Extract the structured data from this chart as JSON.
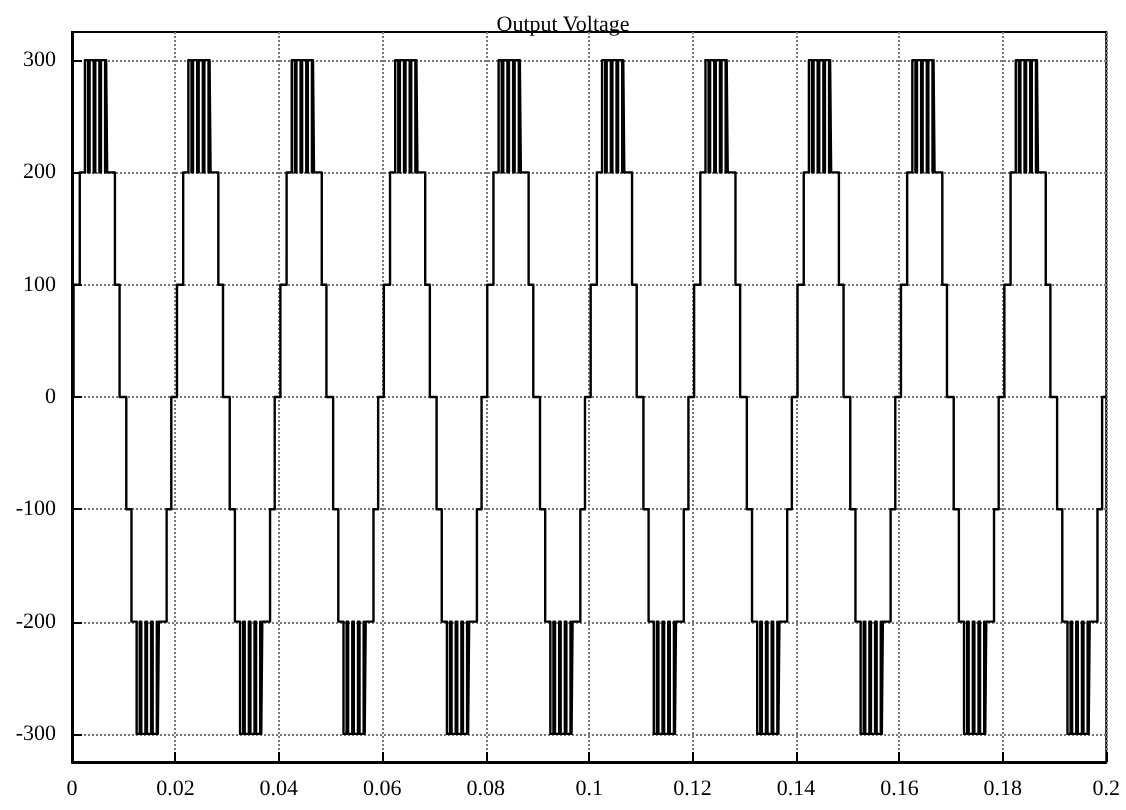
{
  "chart_data": {
    "type": "step",
    "title": "Output Voltage",
    "x": [
      0,
      0.0003,
      0.0015,
      0.0025,
      0.0031,
      0.0034,
      0.0042,
      0.0045,
      0.0053,
      0.0056,
      0.0064,
      0.0066,
      0.0068,
      0.0083,
      0.0092,
      0.0105,
      0.0115,
      0.0125,
      0.0131,
      0.0134,
      0.0142,
      0.0145,
      0.0153,
      0.0156,
      0.0164,
      0.0166,
      0.0168,
      0.0183,
      0.0192,
      0.0203,
      0.0215,
      0.0225,
      0.0231,
      0.0234,
      0.0242,
      0.0245,
      0.0253,
      0.0256,
      0.0264,
      0.0266,
      0.0268,
      0.0283,
      0.0292,
      0.0305,
      0.0315,
      0.0325,
      0.0331,
      0.0334,
      0.0342,
      0.0345,
      0.0353,
      0.0356,
      0.0364,
      0.0366,
      0.0368,
      0.0383,
      0.0392,
      0.0403,
      0.0415,
      0.0425,
      0.0431,
      0.0434,
      0.0442,
      0.0445,
      0.0453,
      0.0456,
      0.0464,
      0.0466,
      0.0468,
      0.0483,
      0.0492,
      0.0505,
      0.0515,
      0.0525,
      0.0531,
      0.0534,
      0.0542,
      0.0545,
      0.0553,
      0.0556,
      0.0564,
      0.0566,
      0.0568,
      0.0583,
      0.0592,
      0.0603,
      0.0615,
      0.0625,
      0.0631,
      0.0634,
      0.0642,
      0.0645,
      0.0653,
      0.0656,
      0.0664,
      0.0666,
      0.0668,
      0.0683,
      0.0692,
      0.0705,
      0.0715,
      0.0725,
      0.0731,
      0.0734,
      0.0742,
      0.0745,
      0.0753,
      0.0756,
      0.0764,
      0.0766,
      0.0768,
      0.0783,
      0.0792,
      0.0803,
      0.0815,
      0.0825,
      0.0831,
      0.0834,
      0.0842,
      0.0845,
      0.0853,
      0.0856,
      0.0864,
      0.0866,
      0.0868,
      0.0883,
      0.0892,
      0.0905,
      0.0915,
      0.0925,
      0.0931,
      0.0934,
      0.0942,
      0.0945,
      0.0953,
      0.0956,
      0.0964,
      0.0966,
      0.0968,
      0.0983,
      0.0992,
      0.1003,
      0.1015,
      0.1025,
      0.1031,
      0.1034,
      0.1042,
      0.1045,
      0.1053,
      0.1056,
      0.1064,
      0.1066,
      0.1068,
      0.1083,
      0.1092,
      0.1105,
      0.1115,
      0.1125,
      0.1131,
      0.1134,
      0.1142,
      0.1145,
      0.1153,
      0.1156,
      0.1164,
      0.1166,
      0.1168,
      0.1183,
      0.1192,
      0.1203,
      0.1215,
      0.1225,
      0.1231,
      0.1234,
      0.1242,
      0.1245,
      0.1253,
      0.1256,
      0.1264,
      0.1266,
      0.1268,
      0.1283,
      0.1292,
      0.1305,
      0.1315,
      0.1325,
      0.1331,
      0.1334,
      0.1342,
      0.1345,
      0.1353,
      0.1356,
      0.1364,
      0.1366,
      0.1368,
      0.1383,
      0.1392,
      0.1403,
      0.1415,
      0.1425,
      0.1431,
      0.1434,
      0.1442,
      0.1445,
      0.1453,
      0.1456,
      0.1464,
      0.1466,
      0.1468,
      0.1483,
      0.1492,
      0.1505,
      0.1515,
      0.1525,
      0.1531,
      0.1534,
      0.1542,
      0.1545,
      0.1553,
      0.1556,
      0.1564,
      0.1566,
      0.1568,
      0.1583,
      0.1592,
      0.1603,
      0.1615,
      0.1625,
      0.1631,
      0.1634,
      0.1642,
      0.1645,
      0.1653,
      0.1656,
      0.1664,
      0.1666,
      0.1668,
      0.1683,
      0.1692,
      0.1705,
      0.1715,
      0.1725,
      0.1731,
      0.1734,
      0.1742,
      0.1745,
      0.1753,
      0.1756,
      0.1764,
      0.1766,
      0.1768,
      0.1783,
      0.1792,
      0.1803,
      0.1815,
      0.1825,
      0.1831,
      0.1834,
      0.1842,
      0.1845,
      0.1853,
      0.1856,
      0.1864,
      0.1866,
      0.1868,
      0.1883,
      0.1892,
      0.1905,
      0.1915,
      0.1925,
      0.1931,
      0.1934,
      0.1942,
      0.1945,
      0.1953,
      0.1956,
      0.1964,
      0.1966,
      0.1968,
      0.1983,
      0.1992,
      0.2
    ],
    "values": [
      0,
      100,
      200,
      300,
      200,
      300,
      200,
      300,
      200,
      300,
      200,
      300,
      200,
      100,
      0,
      -100,
      -200,
      -300,
      -200,
      -300,
      -200,
      -300,
      -200,
      -300,
      -200,
      -300,
      -200,
      -100,
      0,
      100,
      200,
      300,
      200,
      300,
      200,
      300,
      200,
      300,
      200,
      300,
      200,
      100,
      0,
      -100,
      -200,
      -300,
      -200,
      -300,
      -200,
      -300,
      -200,
      -300,
      -200,
      -300,
      -200,
      -100,
      0,
      100,
      200,
      300,
      200,
      300,
      200,
      300,
      200,
      300,
      200,
      300,
      200,
      100,
      0,
      -100,
      -200,
      -300,
      -200,
      -300,
      -200,
      -300,
      -200,
      -300,
      -200,
      -300,
      -200,
      -100,
      0,
      100,
      200,
      300,
      200,
      300,
      200,
      300,
      200,
      300,
      200,
      300,
      200,
      100,
      0,
      -100,
      -200,
      -300,
      -200,
      -300,
      -200,
      -300,
      -200,
      -300,
      -200,
      -300,
      -200,
      -100,
      0,
      100,
      200,
      300,
      200,
      300,
      200,
      300,
      200,
      300,
      200,
      300,
      200,
      100,
      0,
      -100,
      -200,
      -300,
      -200,
      -300,
      -200,
      -300,
      -200,
      -300,
      -200,
      -300,
      -200,
      -100,
      0,
      100,
      200,
      300,
      200,
      300,
      200,
      300,
      200,
      300,
      200,
      300,
      200,
      100,
      0,
      -100,
      -200,
      -300,
      -200,
      -300,
      -200,
      -300,
      -200,
      -300,
      -200,
      -300,
      -200,
      -100,
      0,
      100,
      200,
      300,
      200,
      300,
      200,
      300,
      200,
      300,
      200,
      300,
      200,
      100,
      0,
      -100,
      -200,
      -300,
      -200,
      -300,
      -200,
      -300,
      -200,
      -300,
      -200,
      -300,
      -200,
      -100,
      0,
      100,
      200,
      300,
      200,
      300,
      200,
      300,
      200,
      300,
      200,
      300,
      200,
      100,
      0,
      -100,
      -200,
      -300,
      -200,
      -300,
      -200,
      -300,
      -200,
      -300,
      -200,
      -300,
      -200,
      -100,
      0,
      100,
      200,
      300,
      200,
      300,
      200,
      300,
      200,
      300,
      200,
      300,
      200,
      100,
      0,
      -100,
      -200,
      -300,
      -200,
      -300,
      -200,
      -300,
      -200,
      -300,
      -200,
      -300,
      -200,
      -100,
      0,
      100,
      200,
      300,
      200,
      300,
      200,
      300,
      200,
      300,
      200,
      300,
      200,
      100,
      0,
      -100,
      -200,
      -300,
      -200,
      -300,
      -200,
      -300,
      -200,
      -300,
      -200,
      -300,
      -200,
      -100,
      0,
      0
    ],
    "color": "#000000",
    "xlim": [
      0,
      0.2
    ],
    "xticks": [
      0,
      0.02,
      0.04,
      0.06,
      0.08,
      0.1,
      0.12,
      0.14,
      0.16,
      0.18,
      0.2
    ],
    "ylim": [
      -325,
      325
    ],
    "yticks": [
      -300,
      -200,
      -100,
      0,
      100,
      200,
      300
    ],
    "grid": true,
    "marker": "none",
    "line_style": "solid"
  }
}
